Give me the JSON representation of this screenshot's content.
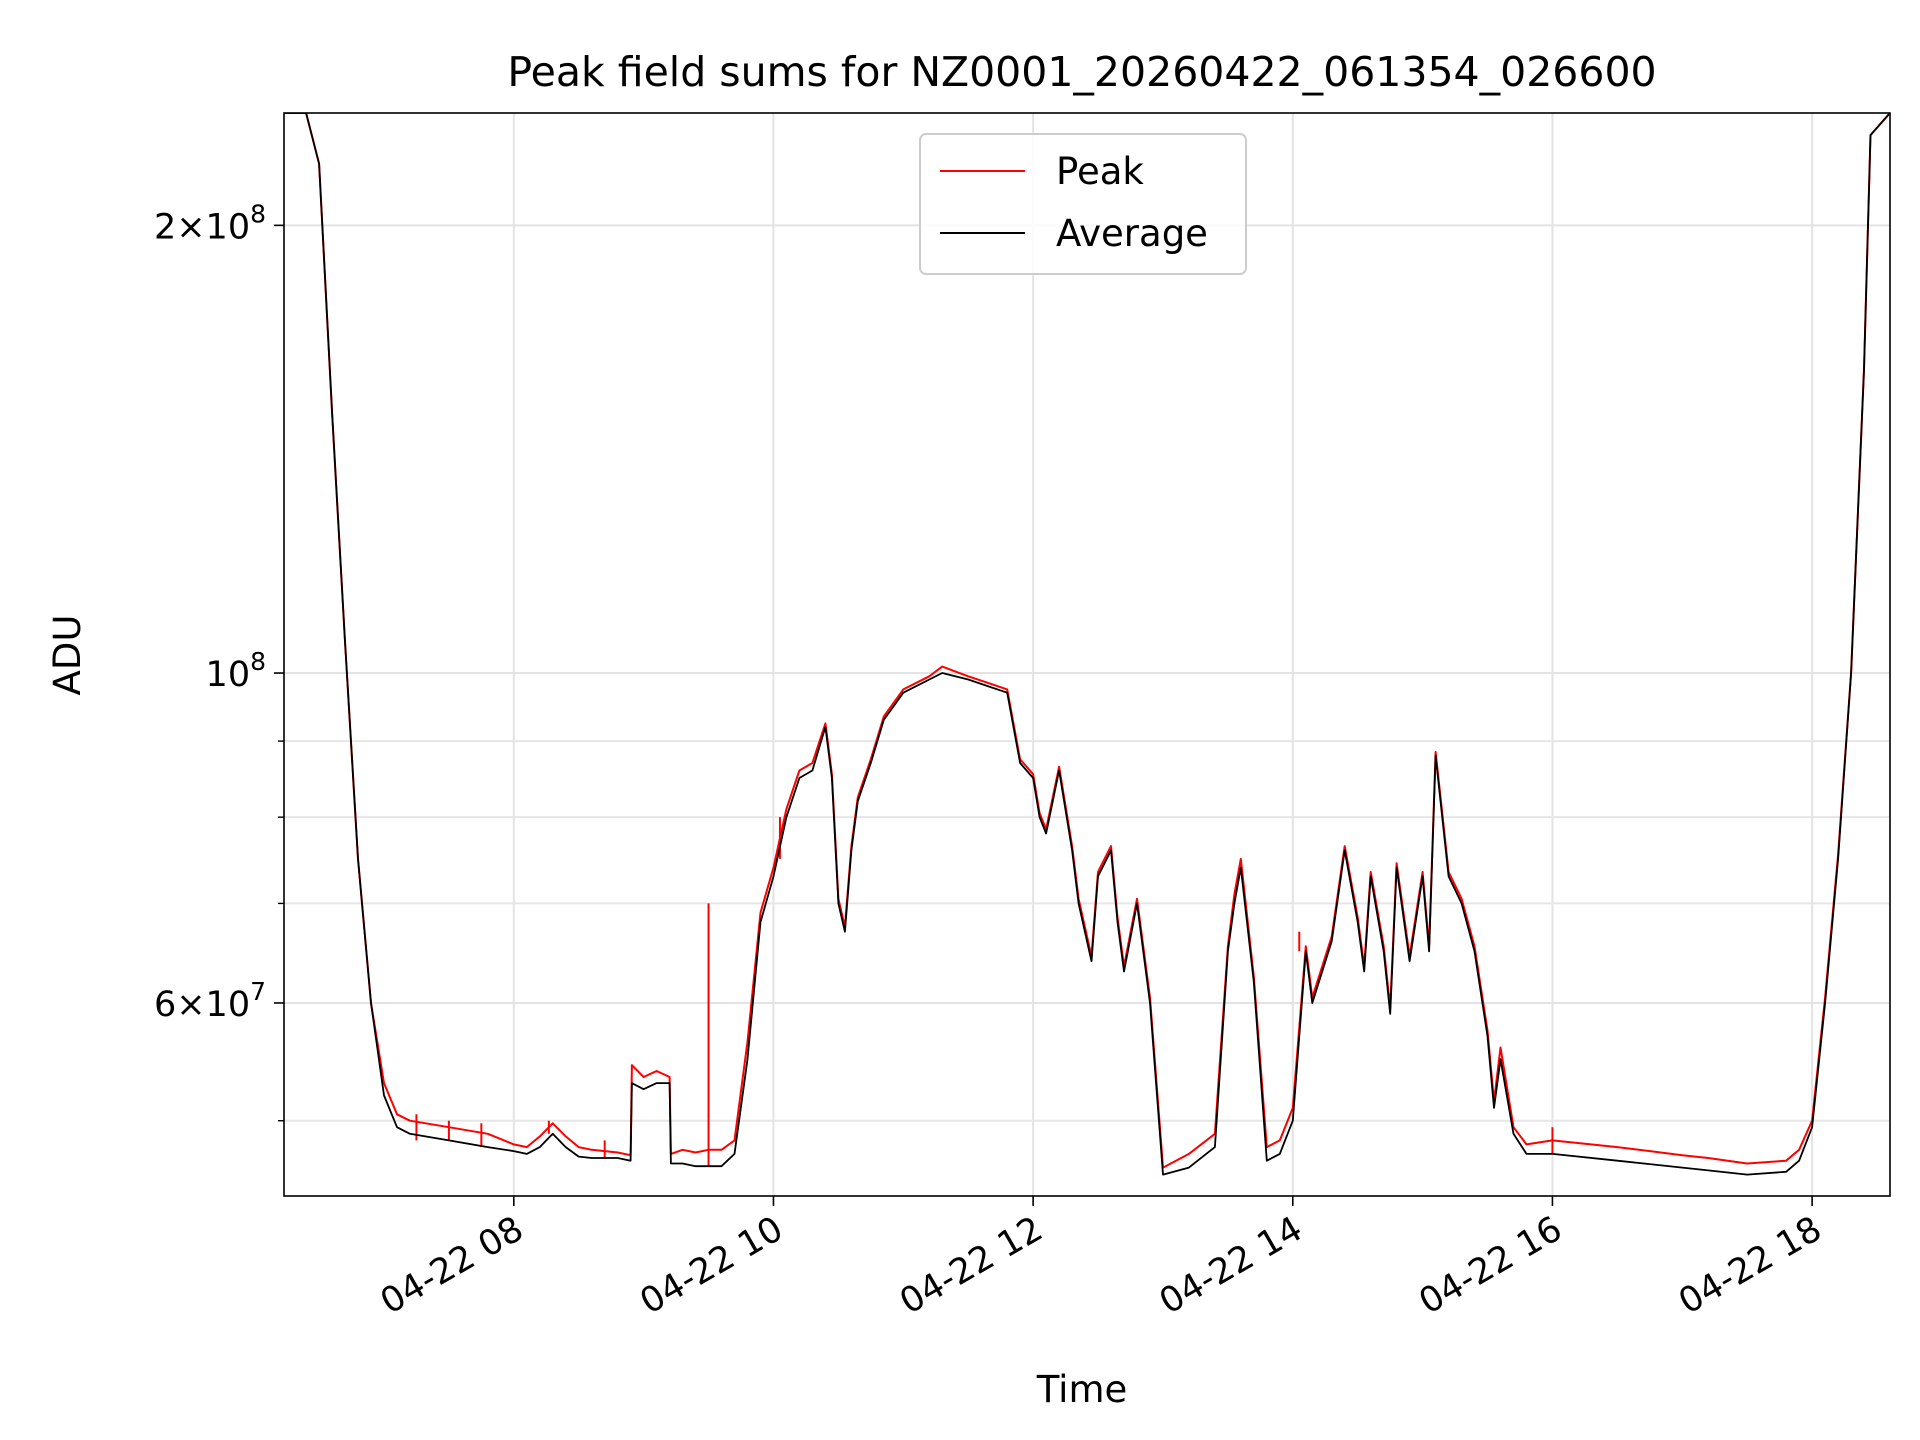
{
  "chart_data": {
    "type": "line",
    "title": "Peak field sums for NZ0001_20260422_061354_026600",
    "xlabel": "Time",
    "ylabel": "ADU",
    "x_unit": "hours",
    "xlim": [
      6.23,
      18.6
    ],
    "ylim": [
      44500000.0,
      238000000.0
    ],
    "yscale": "log",
    "grid": true,
    "legend_position": "upper center",
    "x_ticks": [
      {
        "value": 8,
        "label": "04-22 08"
      },
      {
        "value": 10,
        "label": "04-22 10"
      },
      {
        "value": 12,
        "label": "04-22 12"
      },
      {
        "value": 14,
        "label": "04-22 14"
      },
      {
        "value": 16,
        "label": "04-22 16"
      },
      {
        "value": 18,
        "label": "04-22 18"
      }
    ],
    "y_major_ticks": [
      {
        "value": 200000000,
        "mantissa": "2",
        "exp": "8"
      },
      {
        "value": 100000000,
        "mantissa": "",
        "exp": "8"
      },
      {
        "value": 60000000,
        "mantissa": "6",
        "exp": "7"
      }
    ],
    "y_minor_ticks": [
      50000000,
      70000000,
      80000000,
      90000000
    ],
    "series": [
      {
        "name": "Average",
        "color": "#000000",
        "x": [
          6.23,
          6.4,
          6.5,
          6.6,
          6.7,
          6.8,
          6.9,
          7.0,
          7.1,
          7.2,
          7.5,
          7.8,
          8.0,
          8.1,
          8.2,
          8.3,
          8.4,
          8.5,
          8.6,
          8.7,
          8.8,
          8.9,
          8.91,
          9.0,
          9.1,
          9.2,
          9.21,
          9.3,
          9.4,
          9.5,
          9.6,
          9.7,
          9.8,
          9.9,
          10.0,
          10.1,
          10.2,
          10.3,
          10.4,
          10.45,
          10.5,
          10.55,
          10.6,
          10.65,
          10.75,
          10.85,
          11.0,
          11.2,
          11.3,
          11.5,
          11.65,
          11.8,
          11.9,
          12.0,
          12.05,
          12.1,
          12.2,
          12.3,
          12.35,
          12.45,
          12.5,
          12.6,
          12.65,
          12.7,
          12.8,
          12.9,
          13.0,
          13.2,
          13.4,
          13.5,
          13.55,
          13.6,
          13.7,
          13.8,
          13.9,
          14.0,
          14.1,
          14.15,
          14.3,
          14.4,
          14.5,
          14.55,
          14.6,
          14.7,
          14.75,
          14.8,
          14.9,
          15.0,
          15.05,
          15.1,
          15.2,
          15.3,
          15.4,
          15.5,
          15.55,
          15.6,
          15.7,
          15.8,
          16.0,
          16.5,
          17.0,
          17.2,
          17.5,
          17.8,
          17.9,
          18.0,
          18.1,
          18.2,
          18.3,
          18.4,
          18.45,
          18.6
        ],
        "y": [
          238000000.0,
          238000000.0,
          220000000.0,
          150000000.0,
          105000000.0,
          75000000.0,
          60000000.0,
          52000000.0,
          49500000.0,
          49000000.0,
          48500000.0,
          48000000.0,
          47700000.0,
          47500000.0,
          48000000.0,
          49000000.0,
          48000000.0,
          47300000.0,
          47200000.0,
          47200000.0,
          47200000.0,
          47000000.0,
          53000000.0,
          52500000.0,
          53000000.0,
          53000000.0,
          46800000.0,
          46800000.0,
          46600000.0,
          46600000.0,
          46600000.0,
          47500000.0,
          55000000.0,
          68000000.0,
          73000000.0,
          80000000.0,
          85000000.0,
          86000000.0,
          92000000.0,
          85000000.0,
          70000000.0,
          67000000.0,
          76000000.0,
          82000000.0,
          87000000.0,
          93000000.0,
          97000000.0,
          99000000.0,
          100000000.0,
          99000000.0,
          98000000.0,
          97000000.0,
          87000000.0,
          85000000.0,
          80000000.0,
          78000000.0,
          86000000.0,
          76000000.0,
          70000000.0,
          64000000.0,
          73000000.0,
          76000000.0,
          68000000.0,
          63000000.0,
          70000000.0,
          60000000.0,
          46000000.0,
          46500000.0,
          48000000.0,
          65000000.0,
          70000000.0,
          74000000.0,
          62000000.0,
          47000000.0,
          47500000.0,
          50000000.0,
          65000000.0,
          60000000.0,
          66000000.0,
          76000000.0,
          68000000.0,
          63000000.0,
          73000000.0,
          65000000.0,
          59000000.0,
          74000000.0,
          64000000.0,
          73000000.0,
          65000000.0,
          88000000.0,
          73000000.0,
          70000000.0,
          65000000.0,
          57000000.0,
          51000000.0,
          55000000.0,
          49000000.0,
          47500000.0,
          47500000.0,
          47000000.0,
          46500000.0,
          46300000.0,
          46000000.0,
          46200000.0,
          47000000.0,
          49500000.0,
          60000000.0,
          75000000.0,
          100000000.0,
          160000000.0,
          230000000.0,
          238000000.0
        ]
      },
      {
        "name": "Peak",
        "color": "#ff0000",
        "x": [
          6.23,
          6.4,
          6.5,
          6.6,
          6.7,
          6.8,
          6.9,
          7.0,
          7.1,
          7.2,
          7.5,
          7.8,
          8.0,
          8.1,
          8.2,
          8.3,
          8.4,
          8.5,
          8.6,
          8.7,
          8.8,
          8.9,
          8.91,
          9.0,
          9.1,
          9.2,
          9.21,
          9.3,
          9.4,
          9.5,
          9.6,
          9.7,
          9.8,
          9.9,
          10.0,
          10.1,
          10.2,
          10.3,
          10.4,
          10.45,
          10.5,
          10.55,
          10.6,
          10.65,
          10.75,
          10.85,
          11.0,
          11.2,
          11.3,
          11.5,
          11.65,
          11.8,
          11.9,
          12.0,
          12.05,
          12.1,
          12.2,
          12.3,
          12.35,
          12.45,
          12.5,
          12.6,
          12.65,
          12.7,
          12.8,
          12.9,
          13.0,
          13.2,
          13.4,
          13.5,
          13.55,
          13.6,
          13.7,
          13.8,
          13.9,
          14.0,
          14.1,
          14.15,
          14.3,
          14.4,
          14.5,
          14.55,
          14.6,
          14.7,
          14.75,
          14.8,
          14.9,
          15.0,
          15.05,
          15.1,
          15.2,
          15.3,
          15.4,
          15.5,
          15.55,
          15.6,
          15.7,
          15.8,
          16.0,
          16.5,
          17.0,
          17.2,
          17.5,
          17.8,
          17.9,
          18.0,
          18.1,
          18.2,
          18.3,
          18.4,
          18.45,
          18.6
        ],
        "y": [
          238000000.0,
          238000000.0,
          220000000.0,
          150000000.0,
          105000000.0,
          75000000.0,
          60000000.0,
          53000000.0,
          50500000.0,
          50000000.0,
          49500000.0,
          49000000.0,
          48200000.0,
          48000000.0,
          48800000.0,
          49800000.0,
          48800000.0,
          48000000.0,
          47800000.0,
          47700000.0,
          47600000.0,
          47400000.0,
          54500000.0,
          53500000.0,
          54000000.0,
          53500000.0,
          47500000.0,
          47800000.0,
          47600000.0,
          47800000.0,
          47800000.0,
          48500000.0,
          56500000.0,
          69000000.0,
          74000000.0,
          81000000.0,
          86000000.0,
          87000000.0,
          92500000.0,
          85500000.0,
          70500000.0,
          67500000.0,
          76500000.0,
          82500000.0,
          87500000.0,
          93500000.0,
          97500000.0,
          99500000.0,
          101000000.0,
          99500000.0,
          98500000.0,
          97500000.0,
          87500000.0,
          85500000.0,
          80500000.0,
          78500000.0,
          86500000.0,
          76500000.0,
          70500000.0,
          64500000.0,
          73500000.0,
          76500000.0,
          68500000.0,
          63500000.0,
          70500000.0,
          60500000.0,
          46500000.0,
          47500000.0,
          49000000.0,
          65500000.0,
          71000000.0,
          75000000.0,
          62500000.0,
          48000000.0,
          48500000.0,
          51000000.0,
          65500000.0,
          60500000.0,
          66500000.0,
          76500000.0,
          68500000.0,
          63500000.0,
          73500000.0,
          65500000.0,
          59500000.0,
          74500000.0,
          64500000.0,
          73500000.0,
          65500000.0,
          88500000.0,
          73500000.0,
          70500000.0,
          65500000.0,
          57500000.0,
          51500000.0,
          56000000.0,
          49500000.0,
          48200000.0,
          48500000.0,
          48000000.0,
          47400000.0,
          47200000.0,
          46800000.0,
          47000000.0,
          47800000.0,
          50000000.0,
          60500000.0,
          75500000.0,
          100000000.0,
          160000000.0,
          230000000.0,
          238000000.0
        ]
      }
    ],
    "peak_spikes": [
      {
        "x": 9.5,
        "y": 70000000.0
      },
      {
        "x": 8.27,
        "y": 50000000.0
      },
      {
        "x": 7.25,
        "y": 50500000.0
      },
      {
        "x": 7.5,
        "y": 50000000.0
      },
      {
        "x": 7.75,
        "y": 49800000.0
      },
      {
        "x": 8.7,
        "y": 48500000.0
      },
      {
        "x": 10.05,
        "y": 75000000.0
      },
      {
        "x": 14.05,
        "y": 67000000.0
      },
      {
        "x": 16.0,
        "y": 49500000.0
      }
    ],
    "legend": [
      {
        "name": "Peak",
        "color": "#ff0000"
      },
      {
        "name": "Average",
        "color": "#000000"
      }
    ]
  }
}
